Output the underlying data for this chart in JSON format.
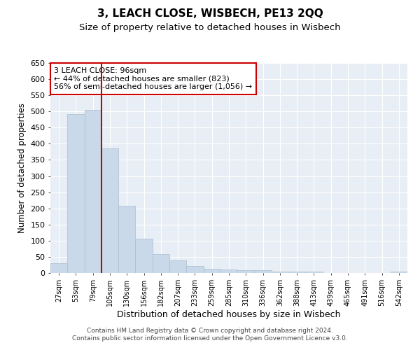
{
  "title": "3, LEACH CLOSE, WISBECH, PE13 2QQ",
  "subtitle": "Size of property relative to detached houses in Wisbech",
  "xlabel": "Distribution of detached houses by size in Wisbech",
  "ylabel": "Number of detached properties",
  "categories": [
    "27sqm",
    "53sqm",
    "79sqm",
    "105sqm",
    "130sqm",
    "156sqm",
    "182sqm",
    "207sqm",
    "233sqm",
    "259sqm",
    "285sqm",
    "310sqm",
    "336sqm",
    "362sqm",
    "388sqm",
    "413sqm",
    "439sqm",
    "465sqm",
    "491sqm",
    "516sqm",
    "542sqm"
  ],
  "values": [
    30,
    492,
    505,
    385,
    208,
    107,
    58,
    40,
    22,
    13,
    10,
    9,
    9,
    5,
    4,
    4,
    1,
    1,
    0,
    1,
    4
  ],
  "bar_color": "#c9d9ea",
  "bar_edge_color": "#aabdce",
  "vline_x": 2.5,
  "vline_color": "#cc0000",
  "annotation_text": "3 LEACH CLOSE: 96sqm\n← 44% of detached houses are smaller (823)\n56% of semi-detached houses are larger (1,056) →",
  "annotation_box_color": "#ffffff",
  "annotation_box_edge": "#cc0000",
  "ylim": [
    0,
    650
  ],
  "yticks": [
    0,
    50,
    100,
    150,
    200,
    250,
    300,
    350,
    400,
    450,
    500,
    550,
    600,
    650
  ],
  "footer_line1": "Contains HM Land Registry data © Crown copyright and database right 2024.",
  "footer_line2": "Contains public sector information licensed under the Open Government Licence v3.0.",
  "bg_color": "#e8eef5",
  "title_fontsize": 11,
  "subtitle_fontsize": 9.5,
  "xlabel_fontsize": 9,
  "ylabel_fontsize": 8.5,
  "footer_fontsize": 6.5
}
